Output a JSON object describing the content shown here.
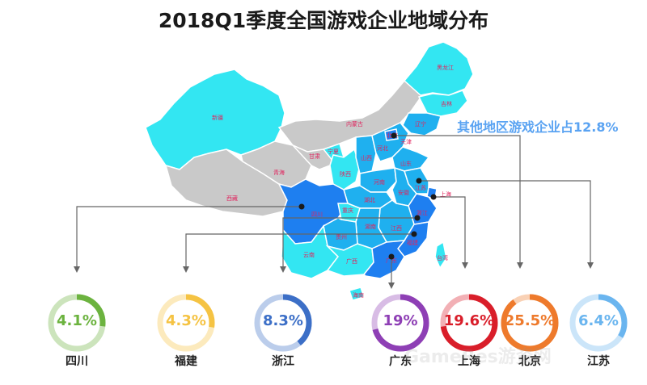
{
  "title": "2018Q1季度全国游戏企业地域分布",
  "other_label": "其他地区游戏企业占12.8%",
  "watermark": "GameRes游资网",
  "map_labels": {
    "xinjiang": "新疆",
    "xizang": "西藏",
    "qinghai": "青海",
    "gansu": "甘肃",
    "neimenggu": "内蒙古",
    "heilongjiang": "黑龙江",
    "jilin": "吉林",
    "liaoning": "辽宁",
    "beijing": "北京",
    "tianjin": "天津",
    "hebei": "河北",
    "shanxi": "山西",
    "shaanxi": "陕西",
    "ningxia": "宁夏",
    "shandong": "山东",
    "henan": "河南",
    "jiangsu": "江苏",
    "anhui": "安徽",
    "shanghai": "上海",
    "hubei": "湖北",
    "sichuan": "四川",
    "chongqing": "重庆",
    "zhejiang": "浙江",
    "jiangxi": "江西",
    "hunan": "湖南",
    "guizhou": "贵州",
    "yunnan": "云南",
    "guangxi": "广西",
    "guangdong": "广东",
    "fujian": "福建",
    "hainan": "海南",
    "taiwan": "台湾"
  },
  "colors": {
    "gray": "#c9c9c9",
    "cyan": "#33e6f2",
    "mid": "#1fb0ef",
    "dark": "#1e7ff0",
    "red_label": "#e0245e"
  },
  "chart_data": {
    "type": "pie",
    "title": "2018Q1季度全国游戏企业地域分布",
    "other": {
      "name": "其他地区",
      "value": 12.8
    },
    "series": [
      {
        "name": "四川",
        "value": 4.1,
        "label": "4.1%",
        "color": "#6cb33f"
      },
      {
        "name": "福建",
        "value": 4.3,
        "label": "4.3%",
        "color": "#f5c343"
      },
      {
        "name": "浙江",
        "value": 8.3,
        "label": "8.3%",
        "color": "#3c6fc7"
      },
      {
        "name": "广东",
        "value": 19,
        "label": "19%",
        "color": "#8e3fb5"
      },
      {
        "name": "上海",
        "value": 19.6,
        "label": "19.6%",
        "color": "#d91e2a"
      },
      {
        "name": "北京",
        "value": 25.5,
        "label": "25.5%",
        "color": "#ee7a2c"
      },
      {
        "name": "江苏",
        "value": 6.4,
        "label": "6.4%",
        "color": "#6ab5ef"
      }
    ]
  }
}
